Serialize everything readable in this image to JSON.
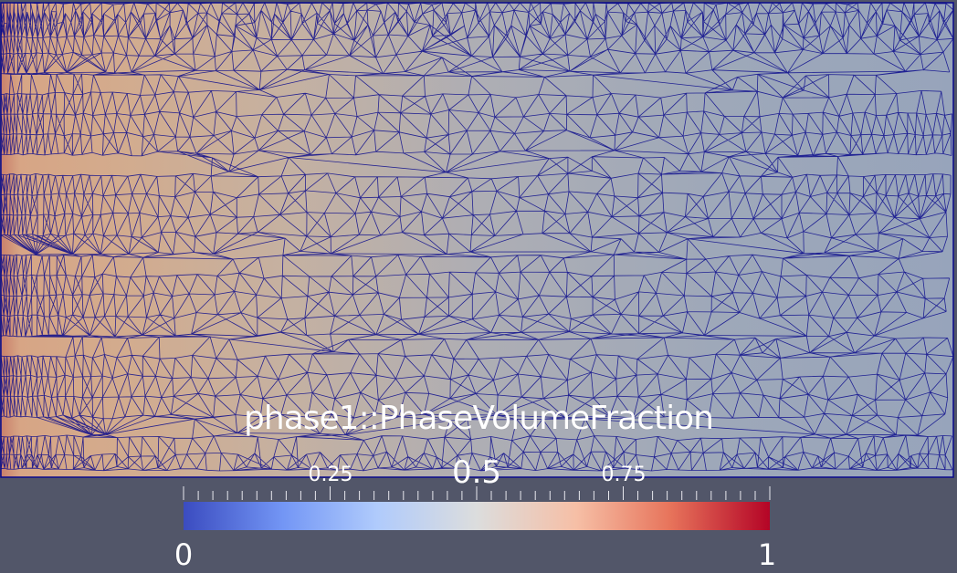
{
  "scalar_bar": {
    "title": "phase1::PhaseVolumeFraction",
    "range": [
      0,
      1
    ],
    "labels": {
      "min": "0",
      "max": "1",
      "q1": "0.25",
      "mid": "0.5",
      "q3": "0.75"
    },
    "colormap": [
      "#3b4cc0",
      "#7396f5",
      "#b0cbfc",
      "#dcdddd",
      "#f6bfa6",
      "#e7745b",
      "#b40426"
    ]
  },
  "colors": {
    "background": "#525669",
    "mesh_edges": "#0a0a8c",
    "field_left": "#d3a98a",
    "field_right": "#97a2b5"
  }
}
